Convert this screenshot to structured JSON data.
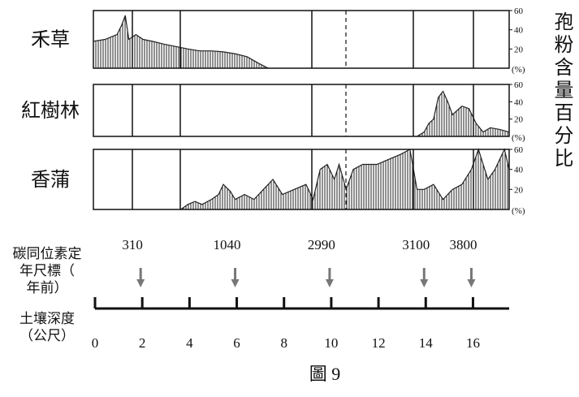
{
  "chart_data": [
    {
      "type": "area",
      "title": "禾草",
      "color": "#222",
      "x": [
        0,
        0.5,
        1.0,
        1.2,
        1.35,
        1.5,
        1.8,
        2.1,
        2.5,
        3,
        3.6,
        4,
        4.5,
        5,
        5.5,
        6,
        6.5,
        7,
        7.4
      ],
      "values": [
        28,
        30,
        35,
        45,
        55,
        30,
        35,
        30,
        28,
        25,
        22,
        20,
        18,
        18,
        17,
        15,
        12,
        5,
        0
      ],
      "xlim": [
        0,
        17.6
      ],
      "ylim": [
        0,
        60
      ],
      "yticks": [
        20,
        40,
        60
      ],
      "y_unit": "(%)"
    },
    {
      "type": "area",
      "title": "紅樹林",
      "color": "#222",
      "x": [
        13.7,
        14.0,
        14.2,
        14.4,
        14.6,
        14.8,
        15.0,
        15.2,
        15.4,
        15.6,
        15.9,
        16.2,
        16.5,
        16.8,
        17.2,
        17.6
      ],
      "values": [
        0,
        5,
        15,
        20,
        45,
        52,
        40,
        25,
        30,
        35,
        32,
        15,
        5,
        10,
        8,
        5
      ],
      "xlim": [
        0,
        17.6
      ],
      "ylim": [
        0,
        60
      ],
      "yticks": [
        20,
        40,
        60
      ],
      "y_unit": "(%)"
    },
    {
      "type": "area",
      "title": "香蒲",
      "color": "#222",
      "x": [
        3.7,
        4,
        4.3,
        4.6,
        5,
        5.3,
        5.5,
        5.8,
        6,
        6.4,
        6.8,
        7.2,
        7.6,
        8,
        8.5,
        9,
        9.3,
        9.6,
        9.9,
        10.2,
        10.4,
        10.7,
        11.0,
        11.4,
        12,
        12.5,
        13,
        13.4,
        13.7,
        14,
        14.4,
        14.8,
        15.2,
        15.6,
        16,
        16.3,
        16.7,
        17,
        17.4,
        17.6
      ],
      "values": [
        0,
        5,
        8,
        5,
        10,
        15,
        25,
        18,
        10,
        15,
        10,
        20,
        30,
        15,
        20,
        25,
        10,
        40,
        45,
        30,
        45,
        20,
        40,
        45,
        45,
        50,
        55,
        60,
        20,
        20,
        25,
        10,
        20,
        25,
        40,
        60,
        30,
        40,
        60,
        40
      ],
      "xlim": [
        0,
        17.6
      ],
      "ylim": [
        0,
        60
      ],
      "yticks": [
        20,
        40,
        60
      ],
      "y_unit": "(%)"
    }
  ],
  "y_axis_label": "孢粉含量百分比",
  "dating": {
    "label": "碳同位素定年尺標（年前）",
    "ages": [
      "310",
      "1040",
      "2990",
      "3100",
      "3800"
    ],
    "depths": [
      2,
      6,
      10,
      14,
      16
    ]
  },
  "depth_axis": {
    "label": "土壤深度（公尺）",
    "xticks": [
      0,
      2,
      4,
      6,
      8,
      10,
      12,
      14,
      16
    ]
  },
  "caption": "圖 9"
}
